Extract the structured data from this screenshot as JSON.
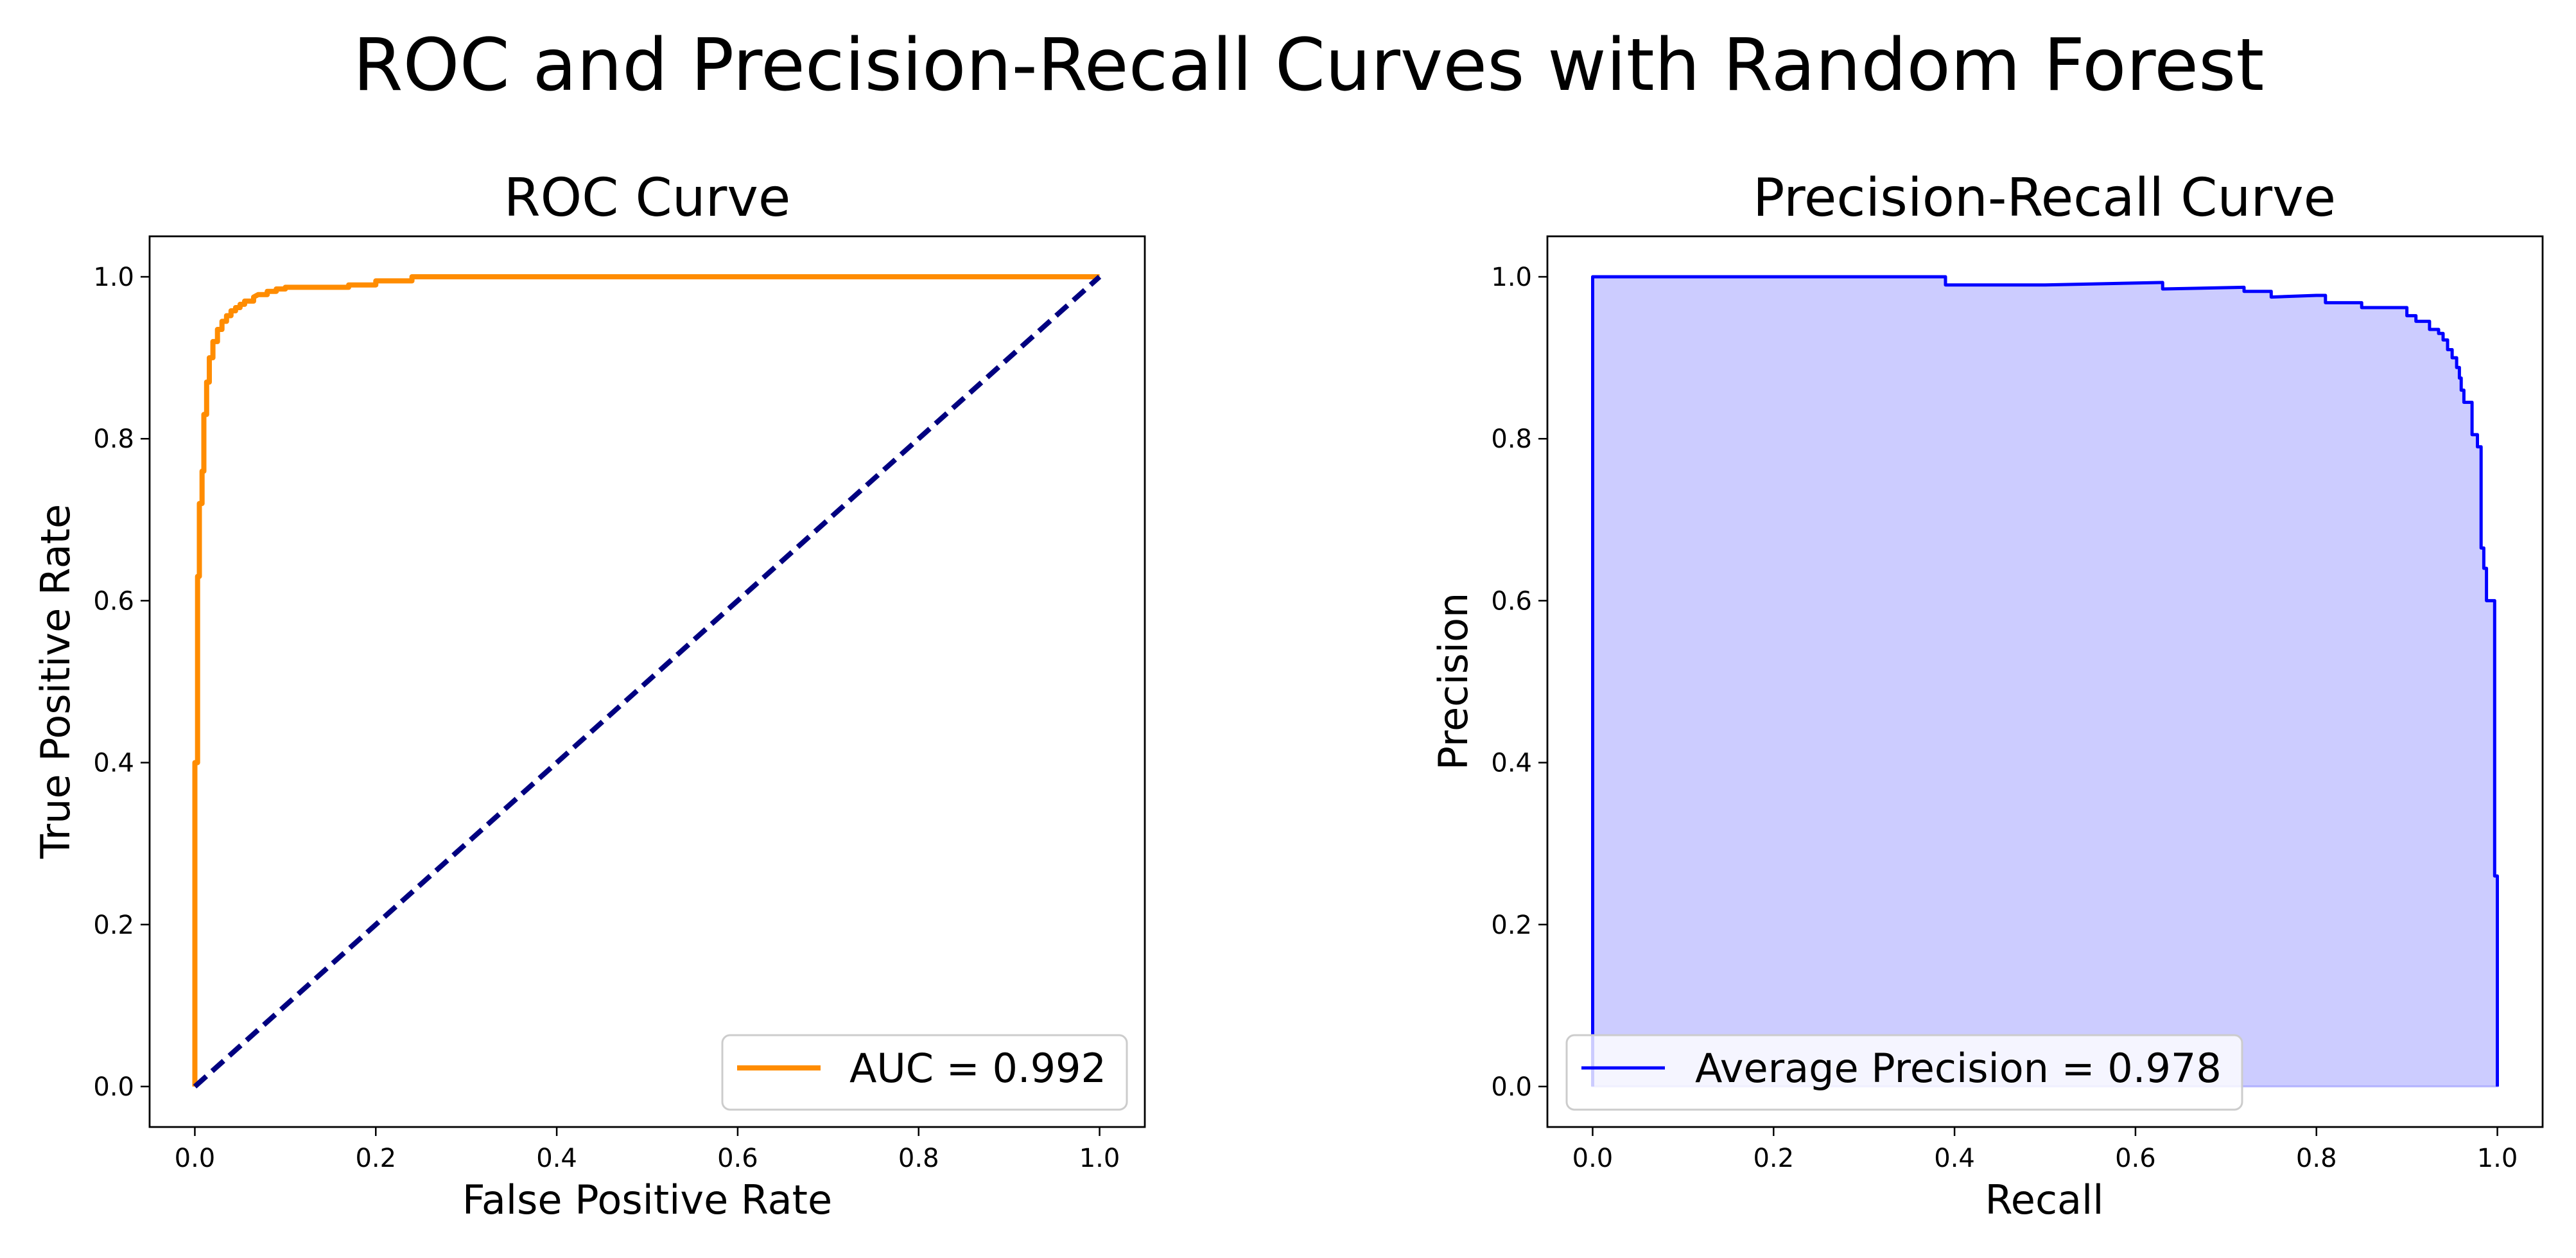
{
  "figure": {
    "suptitle": "ROC and Precision-Recall Curves with Random Forest"
  },
  "chart_data": [
    {
      "type": "line",
      "title": "ROC Curve",
      "xlabel": "False Positive Rate",
      "ylabel": "True Positive Rate",
      "xlim": [
        -0.05,
        1.05
      ],
      "ylim": [
        -0.05,
        1.05
      ],
      "xticks": [
        "0.0",
        "0.2",
        "0.4",
        "0.6",
        "0.8",
        "1.0"
      ],
      "yticks": [
        "0.0",
        "0.2",
        "0.4",
        "0.6",
        "0.8",
        "1.0"
      ],
      "grid": false,
      "legend_position": "lower-right",
      "series": [
        {
          "name": "AUC = 0.992",
          "color": "#ff8c00",
          "line_style": "solid",
          "x": [
            0.0,
            0.0,
            0.003,
            0.003,
            0.005,
            0.005,
            0.008,
            0.008,
            0.01,
            0.01,
            0.013,
            0.013,
            0.016,
            0.016,
            0.02,
            0.02,
            0.025,
            0.025,
            0.03,
            0.03,
            0.035,
            0.035,
            0.04,
            0.04,
            0.045,
            0.045,
            0.05,
            0.05,
            0.055,
            0.055,
            0.06,
            0.065,
            0.065,
            0.07,
            0.08,
            0.08,
            0.09,
            0.09,
            0.1,
            0.1,
            0.17,
            0.17,
            0.2,
            0.2,
            0.24,
            0.24,
            1.0
          ],
          "y": [
            0.0,
            0.4,
            0.4,
            0.63,
            0.63,
            0.72,
            0.72,
            0.76,
            0.76,
            0.83,
            0.83,
            0.87,
            0.87,
            0.9,
            0.9,
            0.92,
            0.92,
            0.935,
            0.935,
            0.945,
            0.945,
            0.952,
            0.952,
            0.958,
            0.958,
            0.962,
            0.962,
            0.966,
            0.966,
            0.97,
            0.97,
            0.97,
            0.975,
            0.978,
            0.978,
            0.982,
            0.982,
            0.985,
            0.985,
            0.987,
            0.987,
            0.99,
            0.99,
            0.995,
            0.995,
            1.0,
            1.0
          ]
        },
        {
          "name": "",
          "color": "#000080",
          "line_style": "dashed",
          "x": [
            0.0,
            1.0
          ],
          "y": [
            0.0,
            1.0
          ]
        }
      ]
    },
    {
      "type": "area",
      "title": "Precision-Recall Curve",
      "xlabel": "Recall",
      "ylabel": "Precision",
      "xlim": [
        -0.05,
        1.05
      ],
      "ylim": [
        -0.05,
        1.05
      ],
      "xticks": [
        "0.0",
        "0.2",
        "0.4",
        "0.6",
        "0.8",
        "1.0"
      ],
      "yticks": [
        "0.0",
        "0.2",
        "0.4",
        "0.6",
        "0.8",
        "1.0"
      ],
      "grid": false,
      "legend_position": "lower-left",
      "series": [
        {
          "name": "Average Precision = 0.978",
          "color": "#0000ff",
          "fill_color": "#ccccff",
          "x": [
            0.0,
            0.0,
            0.39,
            0.39,
            0.5,
            0.63,
            0.63,
            0.72,
            0.72,
            0.75,
            0.75,
            0.8,
            0.81,
            0.81,
            0.85,
            0.85,
            0.88,
            0.88,
            0.9,
            0.9,
            0.91,
            0.91,
            0.925,
            0.925,
            0.935,
            0.935,
            0.94,
            0.94,
            0.945,
            0.945,
            0.95,
            0.95,
            0.955,
            0.955,
            0.958,
            0.958,
            0.96,
            0.96,
            0.963,
            0.963,
            0.967,
            0.967,
            0.972,
            0.972,
            0.978,
            0.978,
            0.982,
            0.982,
            0.985,
            0.985,
            0.988,
            0.988,
            0.993,
            0.993,
            0.997,
            0.997,
            1.0,
            1.0
          ],
          "y": [
            0.0,
            1.0,
            1.0,
            0.99,
            0.99,
            0.993,
            0.985,
            0.987,
            0.982,
            0.982,
            0.975,
            0.977,
            0.977,
            0.968,
            0.968,
            0.962,
            0.962,
            0.962,
            0.962,
            0.952,
            0.952,
            0.945,
            0.945,
            0.935,
            0.935,
            0.93,
            0.93,
            0.922,
            0.922,
            0.91,
            0.91,
            0.9,
            0.9,
            0.888,
            0.888,
            0.875,
            0.875,
            0.86,
            0.86,
            0.845,
            0.845,
            0.845,
            0.845,
            0.805,
            0.805,
            0.79,
            0.79,
            0.665,
            0.665,
            0.64,
            0.64,
            0.6,
            0.6,
            0.6,
            0.6,
            0.26,
            0.26,
            0.0
          ]
        }
      ]
    }
  ]
}
